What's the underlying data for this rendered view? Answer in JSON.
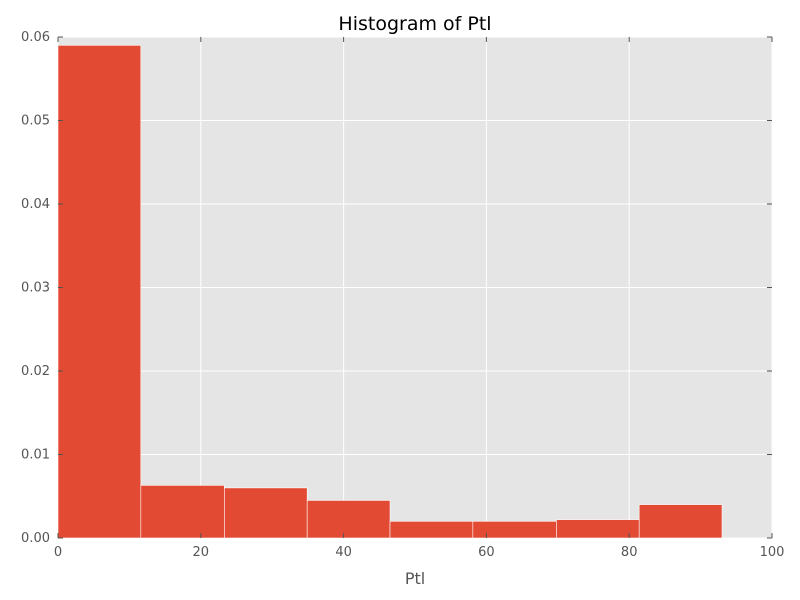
{
  "chart_data": {
    "type": "bar",
    "title": "Histogram of Ptl",
    "xlabel": "Ptl",
    "ylabel": "",
    "xlim": [
      0,
      100
    ],
    "ylim": [
      0,
      0.06
    ],
    "xticks": [
      "0",
      "20",
      "40",
      "60",
      "80",
      "100"
    ],
    "yticks": [
      "0.00",
      "0.01",
      "0.02",
      "0.03",
      "0.04",
      "0.05",
      "0.06"
    ],
    "grid": true,
    "bins": [
      {
        "x0": 0.0,
        "x1": 11.6,
        "value": 0.059
      },
      {
        "x0": 11.6,
        "x1": 23.3,
        "value": 0.0063
      },
      {
        "x0": 23.3,
        "x1": 34.9,
        "value": 0.006
      },
      {
        "x0": 34.9,
        "x1": 46.5,
        "value": 0.0045
      },
      {
        "x0": 46.5,
        "x1": 58.1,
        "value": 0.002
      },
      {
        "x0": 58.1,
        "x1": 69.8,
        "value": 0.002
      },
      {
        "x0": 69.8,
        "x1": 81.4,
        "value": 0.0022
      },
      {
        "x0": 81.4,
        "x1": 93.0,
        "value": 0.004
      }
    ],
    "colors": {
      "bar": "#E24A33",
      "background": "#E5E5E5",
      "grid": "#FFFFFF"
    }
  }
}
